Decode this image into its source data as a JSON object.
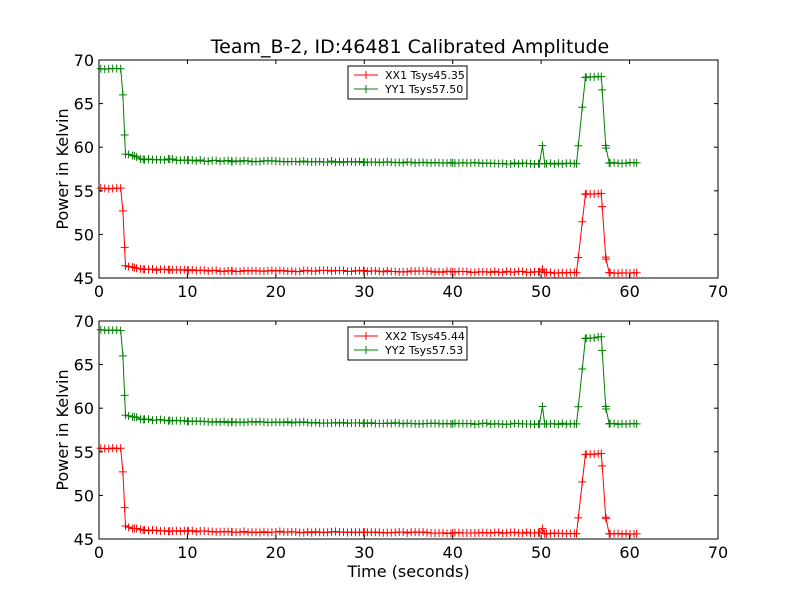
{
  "title": "Team_B-2, ID:46481 Calibrated Amplitude",
  "colors": {
    "xx": "#ff0000",
    "yy": "#008000",
    "axes": "#000000",
    "background": "#ffffff"
  },
  "chart_data": [
    {
      "type": "line",
      "ylabel": "Power in Kelvin",
      "xlabel": "",
      "xlim": [
        0,
        70
      ],
      "ylim": [
        45,
        70
      ],
      "xticks": [
        0,
        10,
        20,
        30,
        40,
        50,
        60,
        70
      ],
      "yticks": [
        45,
        50,
        55,
        60,
        65,
        70
      ],
      "grid": false,
      "legend": "top-center",
      "marker": "+",
      "series": [
        {
          "name": "XX1 Tsys45.35",
          "color": "#ff0000",
          "plateau_start": 55.3,
          "plateau_end": 54.7,
          "baseline": 45.8,
          "trace": [
            [
              0.2,
              55.3
            ],
            [
              2.5,
              55.3
            ],
            [
              2.7,
              52.7
            ],
            [
              3.0,
              46.4
            ],
            [
              4.0,
              46.2
            ],
            [
              5.0,
              46.0
            ],
            [
              8.0,
              45.9
            ],
            [
              10.0,
              45.9
            ],
            [
              15.0,
              45.8
            ],
            [
              20.0,
              45.8
            ],
            [
              30.0,
              45.8
            ],
            [
              40.0,
              45.7
            ],
            [
              49.8,
              45.7
            ],
            [
              50.1,
              46.1
            ],
            [
              50.4,
              45.6
            ],
            [
              54.0,
              45.6
            ],
            [
              54.6,
              51.0
            ],
            [
              55.0,
              54.6
            ],
            [
              56.8,
              54.7
            ],
            [
              57.3,
              47.4
            ],
            [
              57.7,
              45.6
            ],
            [
              60.8,
              45.6
            ]
          ]
        },
        {
          "name": "YY1 Tsys57.50",
          "color": "#008000",
          "plateau_start": 69.0,
          "plateau_end": 68.1,
          "baseline": 58.3,
          "trace": [
            [
              0.2,
              69.0
            ],
            [
              2.5,
              69.0
            ],
            [
              2.7,
              66.0
            ],
            [
              3.0,
              59.2
            ],
            [
              4.0,
              59.0
            ],
            [
              5.0,
              58.6
            ],
            [
              8.0,
              58.6
            ],
            [
              10.0,
              58.5
            ],
            [
              15.0,
              58.4
            ],
            [
              20.0,
              58.4
            ],
            [
              30.0,
              58.3
            ],
            [
              40.0,
              58.2
            ],
            [
              49.8,
              58.1
            ],
            [
              50.1,
              60.6
            ],
            [
              50.4,
              58.1
            ],
            [
              54.0,
              58.1
            ],
            [
              54.6,
              64.1
            ],
            [
              55.0,
              68.0
            ],
            [
              56.8,
              68.1
            ],
            [
              57.3,
              60.2
            ],
            [
              57.7,
              58.2
            ],
            [
              60.8,
              58.2
            ]
          ]
        }
      ]
    },
    {
      "type": "line",
      "ylabel": "Power in Kelvin",
      "xlabel": "Time (seconds)",
      "xlim": [
        0,
        70
      ],
      "ylim": [
        45,
        70
      ],
      "xticks": [
        0,
        10,
        20,
        30,
        40,
        50,
        60,
        70
      ],
      "yticks": [
        45,
        50,
        55,
        60,
        65,
        70
      ],
      "grid": false,
      "legend": "top-center",
      "marker": "+",
      "series": [
        {
          "name": "XX2 Tsys45.44",
          "color": "#ff0000",
          "plateau_start": 55.4,
          "plateau_end": 54.8,
          "baseline": 45.8,
          "trace": [
            [
              0.2,
              55.4
            ],
            [
              2.5,
              55.4
            ],
            [
              2.7,
              52.7
            ],
            [
              3.0,
              46.5
            ],
            [
              4.0,
              46.2
            ],
            [
              5.0,
              46.0
            ],
            [
              8.0,
              45.9
            ],
            [
              10.0,
              45.9
            ],
            [
              15.0,
              45.8
            ],
            [
              20.0,
              45.8
            ],
            [
              30.0,
              45.8
            ],
            [
              40.0,
              45.7
            ],
            [
              49.8,
              45.7
            ],
            [
              50.1,
              46.3
            ],
            [
              50.4,
              45.6
            ],
            [
              54.0,
              45.6
            ],
            [
              54.6,
              51.1
            ],
            [
              55.0,
              54.7
            ],
            [
              56.8,
              54.8
            ],
            [
              57.3,
              47.5
            ],
            [
              57.7,
              45.6
            ],
            [
              60.8,
              45.6
            ]
          ]
        },
        {
          "name": "YY2 Tsys57.53",
          "color": "#008000",
          "plateau_start": 69.0,
          "plateau_end": 68.2,
          "baseline": 58.2,
          "trace": [
            [
              0.2,
              69.0
            ],
            [
              2.5,
              68.9
            ],
            [
              2.7,
              66.0
            ],
            [
              3.0,
              59.2
            ],
            [
              4.0,
              59.0
            ],
            [
              5.0,
              58.7
            ],
            [
              8.0,
              58.6
            ],
            [
              10.0,
              58.5
            ],
            [
              15.0,
              58.4
            ],
            [
              20.0,
              58.4
            ],
            [
              30.0,
              58.3
            ],
            [
              40.0,
              58.2
            ],
            [
              49.8,
              58.2
            ],
            [
              50.1,
              60.6
            ],
            [
              50.4,
              58.2
            ],
            [
              54.0,
              58.2
            ],
            [
              54.6,
              64.0
            ],
            [
              55.0,
              68.0
            ],
            [
              56.8,
              68.2
            ],
            [
              57.3,
              60.2
            ],
            [
              57.7,
              58.2
            ],
            [
              60.8,
              58.2
            ]
          ]
        }
      ]
    }
  ]
}
